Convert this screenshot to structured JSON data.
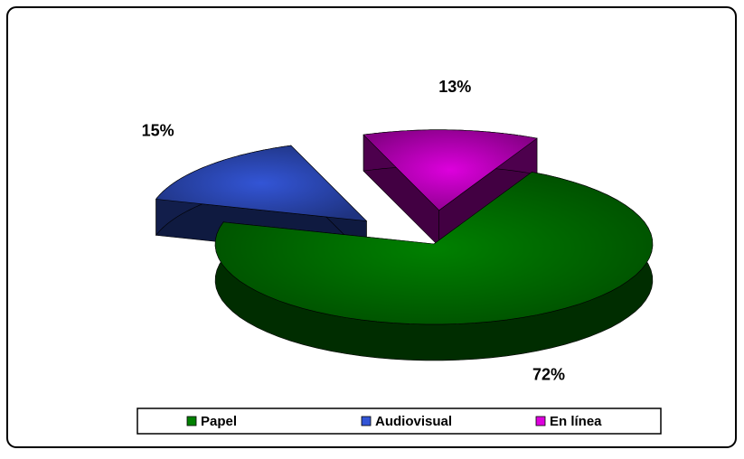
{
  "chart_data": {
    "type": "pie3d",
    "categories": [
      "Papel",
      "Audiovisual",
      "En línea"
    ],
    "values": [
      72,
      15,
      13
    ],
    "value_labels": [
      "72%",
      "15%",
      "13%"
    ],
    "colors": [
      "#008000",
      "#3355d6",
      "#dd00dd"
    ],
    "exploded": [
      false,
      true,
      true
    ],
    "legend": "bottom"
  }
}
